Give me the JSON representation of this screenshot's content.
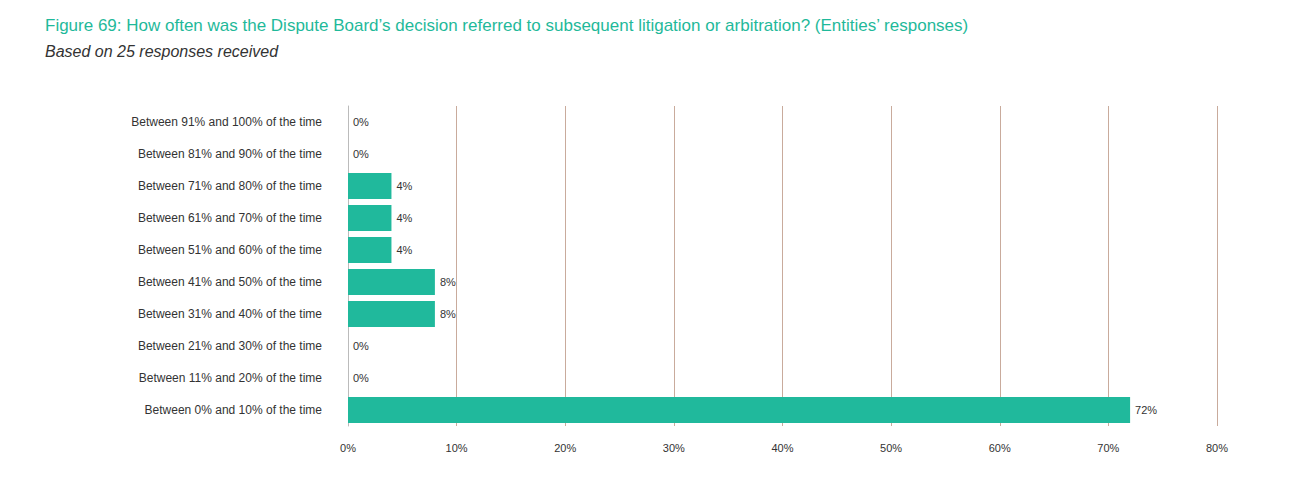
{
  "chart_data": {
    "type": "bar",
    "orientation": "horizontal",
    "title": "Figure 69: How often was the Dispute Board’s decision referred to subsequent litigation or arbitration? (Entities’ responses)",
    "subtitle": "Based on 25 responses received",
    "categories": [
      "Between 91% and 100% of the time",
      "Between 81% and 90% of the time",
      "Between 71% and 80% of the time",
      "Between 61% and 70% of the time",
      "Between 51% and 60% of the time",
      "Between 41% and 50% of the time",
      "Between 31% and 40% of the time",
      "Between 21% and 30% of the time",
      "Between 11% and 20% of the time",
      "Between 0% and 10% of the time"
    ],
    "values": [
      0,
      0,
      4,
      4,
      4,
      8,
      8,
      0,
      0,
      72
    ],
    "value_labels": [
      "0%",
      "0%",
      "4%",
      "4%",
      "4%",
      "8%",
      "8%",
      "0%",
      "0%",
      "72%"
    ],
    "data_labels": true,
    "color": "#20b99c",
    "xlim": [
      0,
      80
    ],
    "xticks": [
      {
        "value": 0,
        "label": "0%"
      },
      {
        "value": 10,
        "label": "10%"
      },
      {
        "value": 20,
        "label": "20%"
      },
      {
        "value": 30,
        "label": "30%"
      },
      {
        "value": 40,
        "label": "40%"
      },
      {
        "value": 50,
        "label": "50%"
      },
      {
        "value": 60,
        "label": "60%"
      },
      {
        "value": 70,
        "label": "70%"
      },
      {
        "value": 80,
        "label": "80%"
      }
    ],
    "grid": true
  }
}
